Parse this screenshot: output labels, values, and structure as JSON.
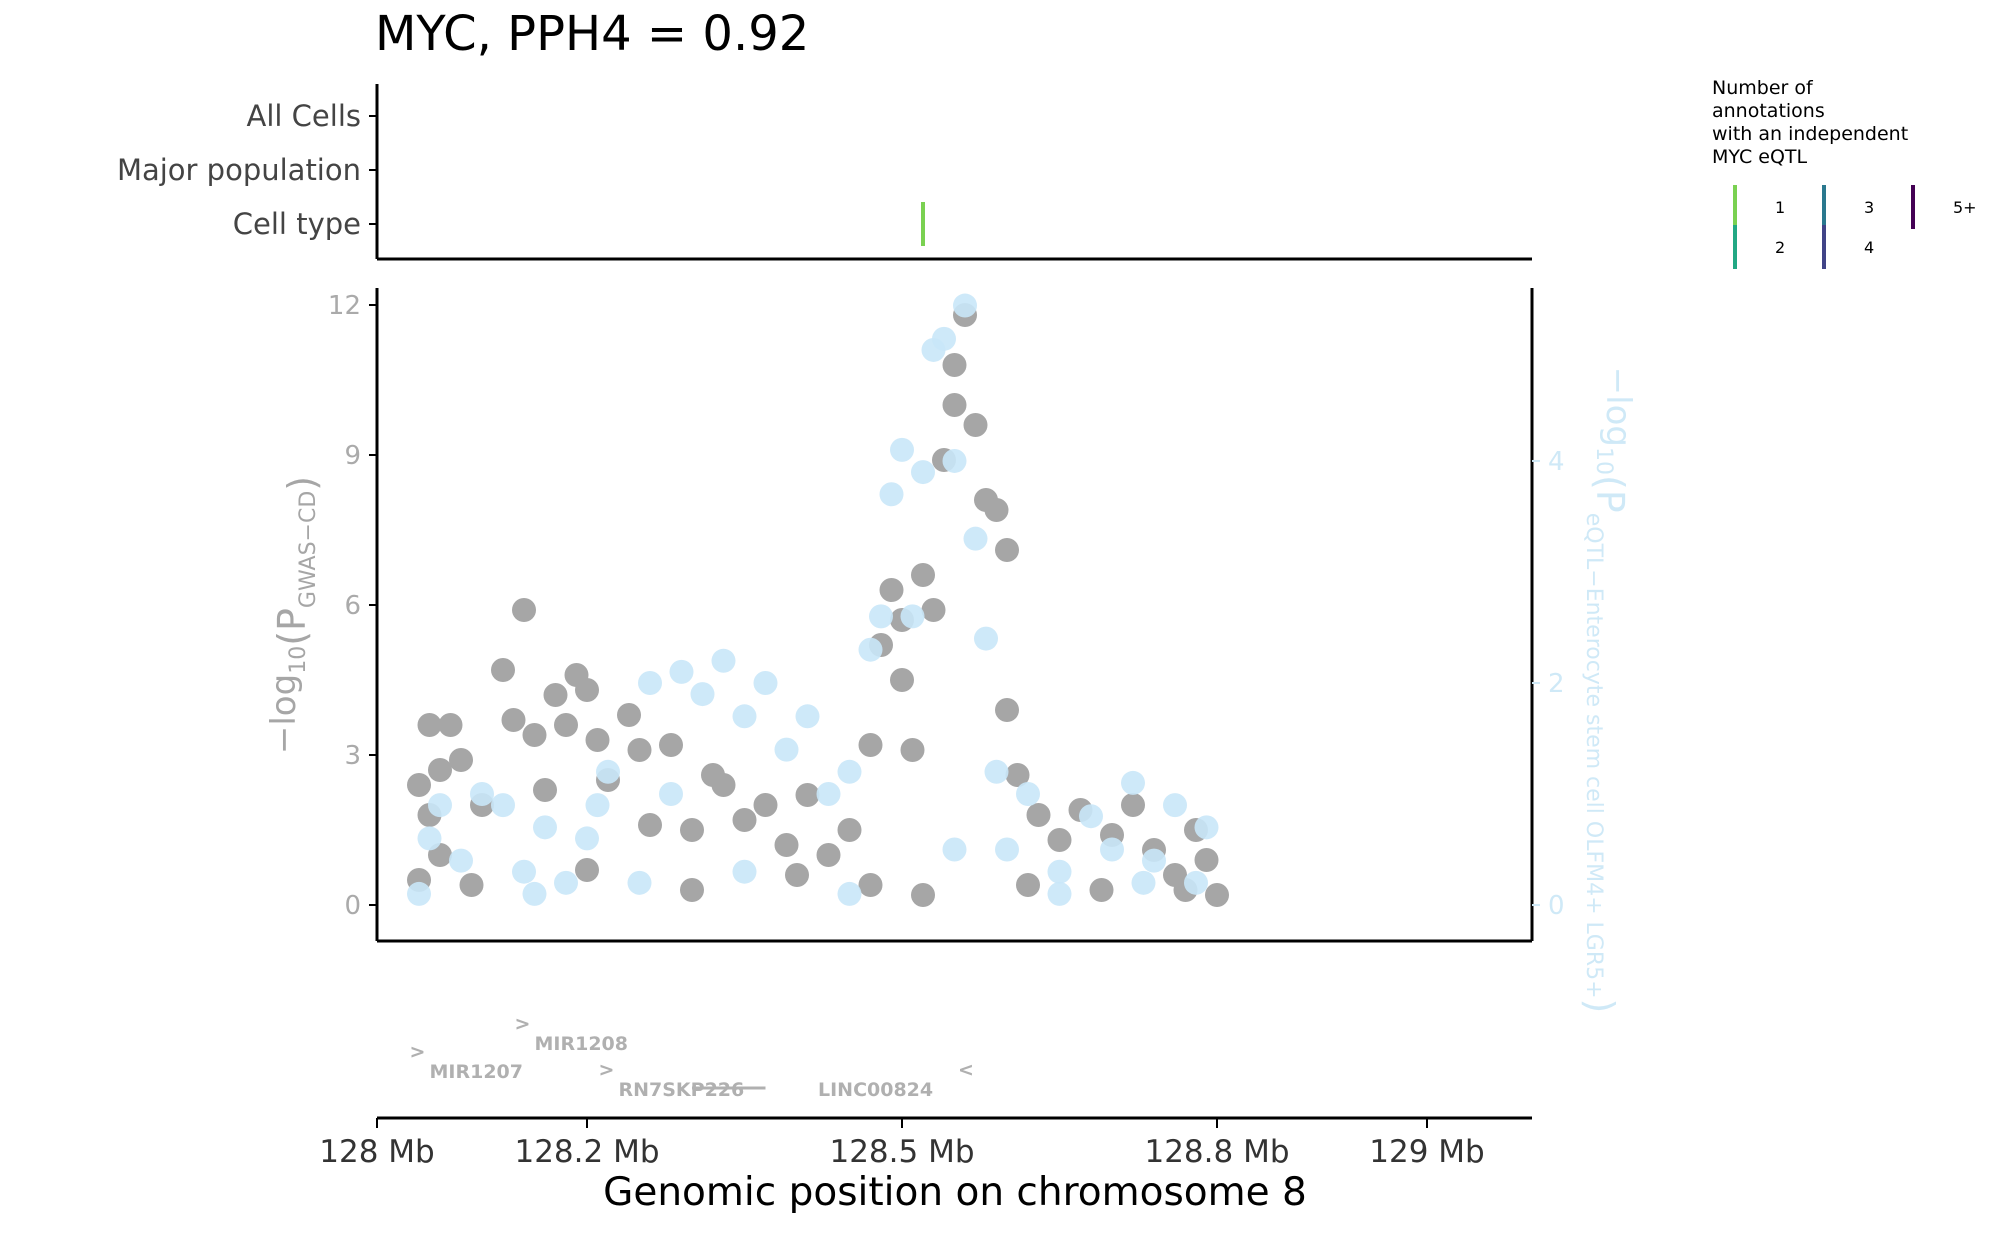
{
  "title": "MYC, PPH4 = 0.92",
  "annotation_track": {
    "rows": [
      "All Cells",
      "Major population",
      "Cell type"
    ],
    "marks": [
      {
        "row": "Cell type",
        "position_mb": 128.52,
        "count": 1
      }
    ]
  },
  "legend": {
    "title_lines": [
      "Number of",
      "annotations",
      "with an independent",
      "MYC eQTL"
    ],
    "keys": [
      {
        "label": "1",
        "color": "#7ad151"
      },
      {
        "label": "2",
        "color": "#22a884"
      },
      {
        "label": "3",
        "color": "#2a788e"
      },
      {
        "label": "4",
        "color": "#414487"
      },
      {
        "label": "5+",
        "color": "#440154"
      }
    ]
  },
  "chart_data": {
    "type": "scatter",
    "xlabel": "Genomic position on chromosome 8",
    "x_ticks": [
      {
        "value": 128.0,
        "label": "128 Mb"
      },
      {
        "value": 128.2,
        "label": "128.2 Mb"
      },
      {
        "value": 128.5,
        "label": "128.5 Mb"
      },
      {
        "value": 128.8,
        "label": "128.8 Mb"
      },
      {
        "value": 129.0,
        "label": "129 Mb"
      }
    ],
    "xlim": [
      128.0,
      129.1
    ],
    "y_left": {
      "label_main": "−log",
      "label_sub": "10",
      "label_p": "(P",
      "label_subscript": "GWAS−CD",
      "label_close": ")",
      "ticks": [
        0,
        3,
        6,
        9,
        12
      ],
      "ylim": [
        -0.6,
        12.3
      ]
    },
    "y_right": {
      "label_main": "−log",
      "label_sub": "10",
      "label_p": "(P",
      "label_subscript": "eQTL−Enterocyte stem cell OLFM4+ LGR5+",
      "label_close": ")",
      "ticks": [
        0,
        2,
        4
      ],
      "ylim": [
        -0.27,
        5.54
      ]
    },
    "series": [
      {
        "axis": "left",
        "color": "#a6a6a6",
        "points": [
          [
            128.04,
            2.4
          ],
          [
            128.05,
            3.6
          ],
          [
            128.06,
            2.7
          ],
          [
            128.05,
            1.8
          ],
          [
            128.07,
            3.6
          ],
          [
            128.08,
            2.9
          ],
          [
            128.04,
            0.5
          ],
          [
            128.06,
            1.0
          ],
          [
            128.09,
            0.4
          ],
          [
            128.1,
            2.0
          ],
          [
            128.12,
            4.7
          ],
          [
            128.13,
            3.7
          ],
          [
            128.14,
            5.9
          ],
          [
            128.15,
            3.4
          ],
          [
            128.16,
            2.3
          ],
          [
            128.17,
            4.2
          ],
          [
            128.18,
            3.6
          ],
          [
            128.19,
            4.6
          ],
          [
            128.2,
            4.3
          ],
          [
            128.21,
            3.3
          ],
          [
            128.22,
            2.5
          ],
          [
            128.24,
            3.8
          ],
          [
            128.25,
            3.1
          ],
          [
            128.26,
            1.6
          ],
          [
            128.28,
            3.2
          ],
          [
            128.3,
            1.5
          ],
          [
            128.32,
            2.6
          ],
          [
            128.33,
            2.4
          ],
          [
            128.35,
            1.7
          ],
          [
            128.37,
            2.0
          ],
          [
            128.39,
            1.2
          ],
          [
            128.41,
            2.2
          ],
          [
            128.43,
            1.0
          ],
          [
            128.45,
            1.5
          ],
          [
            128.47,
            3.2
          ],
          [
            128.48,
            5.2
          ],
          [
            128.49,
            6.3
          ],
          [
            128.5,
            5.7
          ],
          [
            128.51,
            3.1
          ],
          [
            128.52,
            6.6
          ],
          [
            128.53,
            5.9
          ],
          [
            128.54,
            8.9
          ],
          [
            128.55,
            10.0
          ],
          [
            128.55,
            10.8
          ],
          [
            128.56,
            11.8
          ],
          [
            128.57,
            9.6
          ],
          [
            128.58,
            8.1
          ],
          [
            128.59,
            7.9
          ],
          [
            128.6,
            7.1
          ],
          [
            128.6,
            3.9
          ],
          [
            128.61,
            2.6
          ],
          [
            128.5,
            4.5
          ],
          [
            128.47,
            0.4
          ],
          [
            128.52,
            0.2
          ],
          [
            128.63,
            1.8
          ],
          [
            128.65,
            1.3
          ],
          [
            128.67,
            1.9
          ],
          [
            128.7,
            1.4
          ],
          [
            128.72,
            2.0
          ],
          [
            128.74,
            1.1
          ],
          [
            128.76,
            0.6
          ],
          [
            128.78,
            1.5
          ],
          [
            128.79,
            0.9
          ],
          [
            128.8,
            0.2
          ],
          [
            128.2,
            0.7
          ],
          [
            128.3,
            0.3
          ],
          [
            128.4,
            0.6
          ],
          [
            128.62,
            0.4
          ],
          [
            128.69,
            0.3
          ],
          [
            128.77,
            0.3
          ]
        ]
      },
      {
        "axis": "right",
        "color": "#c9e7f8",
        "points": [
          [
            128.04,
            0.1
          ],
          [
            128.05,
            0.6
          ],
          [
            128.06,
            0.9
          ],
          [
            128.08,
            0.4
          ],
          [
            128.1,
            1.0
          ],
          [
            128.12,
            0.9
          ],
          [
            128.14,
            0.3
          ],
          [
            128.16,
            0.7
          ],
          [
            128.18,
            0.2
          ],
          [
            128.2,
            0.6
          ],
          [
            128.21,
            0.9
          ],
          [
            128.22,
            1.2
          ],
          [
            128.26,
            2.0
          ],
          [
            128.28,
            1.0
          ],
          [
            128.29,
            2.1
          ],
          [
            128.31,
            1.9
          ],
          [
            128.33,
            2.2
          ],
          [
            128.35,
            1.7
          ],
          [
            128.37,
            2.0
          ],
          [
            128.39,
            1.4
          ],
          [
            128.41,
            1.7
          ],
          [
            128.43,
            1.0
          ],
          [
            128.45,
            1.2
          ],
          [
            128.47,
            2.3
          ],
          [
            128.48,
            2.6
          ],
          [
            128.49,
            3.7
          ],
          [
            128.5,
            4.1
          ],
          [
            128.51,
            2.6
          ],
          [
            128.52,
            3.9
          ],
          [
            128.53,
            5.0
          ],
          [
            128.54,
            5.1
          ],
          [
            128.55,
            4.0
          ],
          [
            128.56,
            5.4
          ],
          [
            128.57,
            3.3
          ],
          [
            128.58,
            2.4
          ],
          [
            128.59,
            1.2
          ],
          [
            128.6,
            0.5
          ],
          [
            128.62,
            1.0
          ],
          [
            128.65,
            0.3
          ],
          [
            128.68,
            0.8
          ],
          [
            128.7,
            0.5
          ],
          [
            128.72,
            1.1
          ],
          [
            128.74,
            0.4
          ],
          [
            128.76,
            0.9
          ],
          [
            128.78,
            0.2
          ],
          [
            128.79,
            0.7
          ],
          [
            128.15,
            0.1
          ],
          [
            128.25,
            0.2
          ],
          [
            128.35,
            0.3
          ],
          [
            128.45,
            0.1
          ],
          [
            128.55,
            0.5
          ],
          [
            128.65,
            0.1
          ],
          [
            128.73,
            0.2
          ]
        ]
      }
    ]
  },
  "genes": [
    {
      "name": "MIR1207",
      "start": 128.05,
      "strand": "+",
      "row": 1
    },
    {
      "name": "MIR1208",
      "start": 128.15,
      "strand": "+",
      "row": 0
    },
    {
      "name": "RN7SKP226",
      "start": 128.23,
      "strand": "+",
      "row": 2
    },
    {
      "name": "LINC00824",
      "start": 128.42,
      "strand": "-",
      "row": 2
    }
  ]
}
